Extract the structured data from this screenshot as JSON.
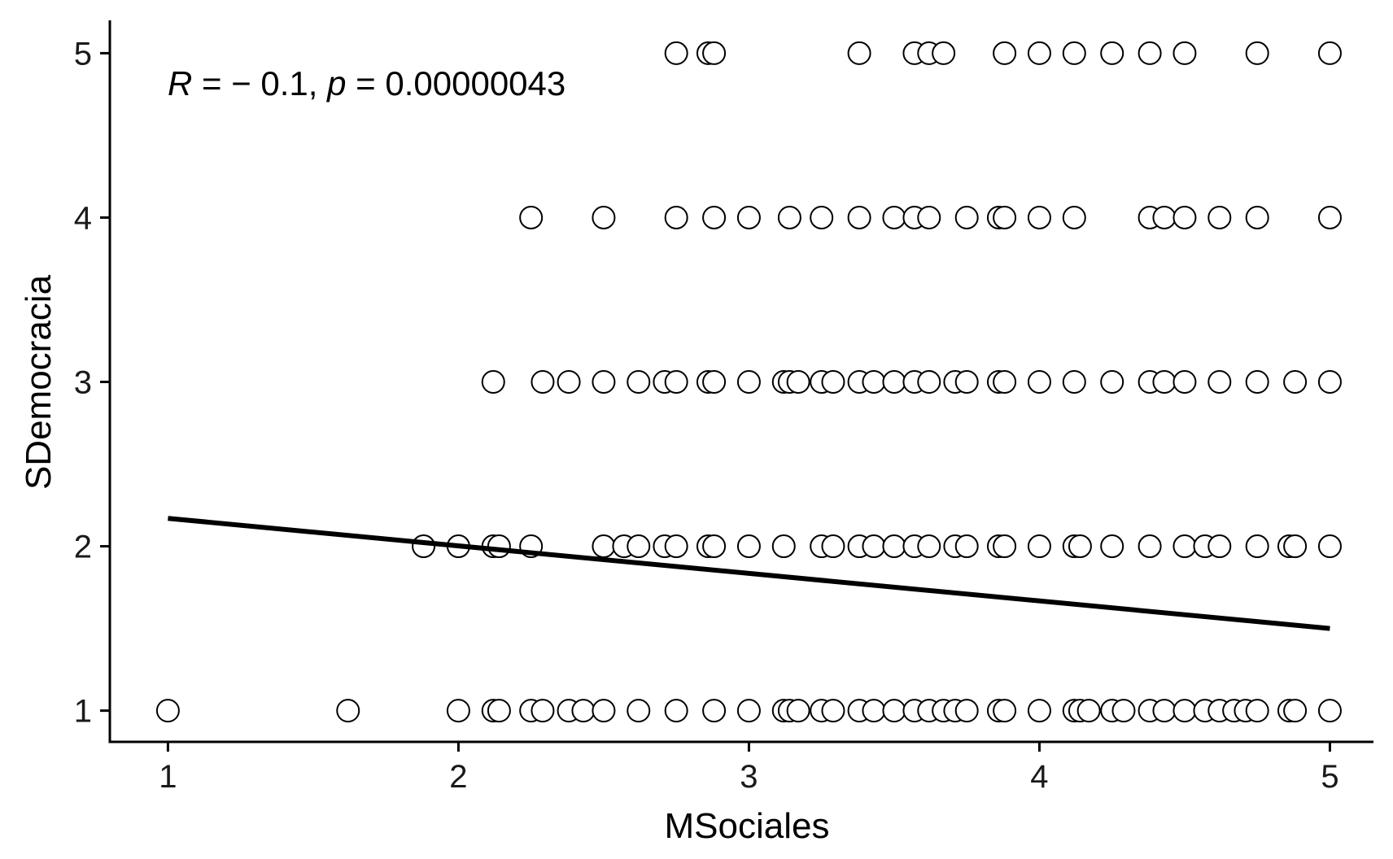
{
  "chart_data": {
    "type": "scatter",
    "xlabel": "MSociales",
    "ylabel": "SDemocracia",
    "xlim": [
      0.8,
      5.15
    ],
    "ylim": [
      0.81,
      5.2
    ],
    "x_ticks": [
      1,
      2,
      3,
      4,
      5
    ],
    "y_ticks": [
      1,
      2,
      3,
      4,
      5
    ],
    "x_tick_labels": [
      "1",
      "2",
      "3",
      "4",
      "5"
    ],
    "y_tick_labels": [
      "1",
      "2",
      "3",
      "4",
      "5"
    ],
    "grid": false,
    "legend": "none",
    "annotation": {
      "r_symbol": "R",
      "r_text": " = − 0.1, ",
      "p_symbol": "p",
      "p_text": " = 0.00000043"
    },
    "regression_line": {
      "x": [
        1,
        5
      ],
      "y": [
        2.17,
        1.5
      ],
      "color": "#000000"
    },
    "point_style": {
      "fill": "#ffffff",
      "stroke": "#000000"
    },
    "points": [
      {
        "x": 2.75,
        "y": 5
      },
      {
        "x": 2.86,
        "y": 5
      },
      {
        "x": 2.88,
        "y": 5
      },
      {
        "x": 3.38,
        "y": 5
      },
      {
        "x": 3.57,
        "y": 5
      },
      {
        "x": 3.62,
        "y": 5
      },
      {
        "x": 3.67,
        "y": 5
      },
      {
        "x": 3.88,
        "y": 5
      },
      {
        "x": 4.0,
        "y": 5
      },
      {
        "x": 4.12,
        "y": 5
      },
      {
        "x": 4.25,
        "y": 5
      },
      {
        "x": 4.38,
        "y": 5
      },
      {
        "x": 4.5,
        "y": 5
      },
      {
        "x": 4.75,
        "y": 5
      },
      {
        "x": 5.0,
        "y": 5
      },
      {
        "x": 2.25,
        "y": 4
      },
      {
        "x": 2.5,
        "y": 4
      },
      {
        "x": 2.75,
        "y": 4
      },
      {
        "x": 2.88,
        "y": 4
      },
      {
        "x": 3.0,
        "y": 4
      },
      {
        "x": 3.14,
        "y": 4
      },
      {
        "x": 3.25,
        "y": 4
      },
      {
        "x": 3.38,
        "y": 4
      },
      {
        "x": 3.5,
        "y": 4
      },
      {
        "x": 3.57,
        "y": 4
      },
      {
        "x": 3.62,
        "y": 4
      },
      {
        "x": 3.75,
        "y": 4
      },
      {
        "x": 3.86,
        "y": 4
      },
      {
        "x": 3.88,
        "y": 4
      },
      {
        "x": 4.0,
        "y": 4
      },
      {
        "x": 4.12,
        "y": 4
      },
      {
        "x": 4.38,
        "y": 4
      },
      {
        "x": 4.43,
        "y": 4
      },
      {
        "x": 4.5,
        "y": 4
      },
      {
        "x": 4.62,
        "y": 4
      },
      {
        "x": 4.75,
        "y": 4
      },
      {
        "x": 5.0,
        "y": 4
      },
      {
        "x": 2.12,
        "y": 3
      },
      {
        "x": 2.29,
        "y": 3
      },
      {
        "x": 2.38,
        "y": 3
      },
      {
        "x": 2.5,
        "y": 3
      },
      {
        "x": 2.62,
        "y": 3
      },
      {
        "x": 2.71,
        "y": 3
      },
      {
        "x": 2.75,
        "y": 3
      },
      {
        "x": 2.86,
        "y": 3
      },
      {
        "x": 2.88,
        "y": 3
      },
      {
        "x": 3.0,
        "y": 3
      },
      {
        "x": 3.12,
        "y": 3
      },
      {
        "x": 3.14,
        "y": 3
      },
      {
        "x": 3.17,
        "y": 3
      },
      {
        "x": 3.25,
        "y": 3
      },
      {
        "x": 3.29,
        "y": 3
      },
      {
        "x": 3.38,
        "y": 3
      },
      {
        "x": 3.43,
        "y": 3
      },
      {
        "x": 3.5,
        "y": 3
      },
      {
        "x": 3.57,
        "y": 3
      },
      {
        "x": 3.62,
        "y": 3
      },
      {
        "x": 3.71,
        "y": 3
      },
      {
        "x": 3.75,
        "y": 3
      },
      {
        "x": 3.86,
        "y": 3
      },
      {
        "x": 3.88,
        "y": 3
      },
      {
        "x": 4.0,
        "y": 3
      },
      {
        "x": 4.12,
        "y": 3
      },
      {
        "x": 4.25,
        "y": 3
      },
      {
        "x": 4.38,
        "y": 3
      },
      {
        "x": 4.43,
        "y": 3
      },
      {
        "x": 4.5,
        "y": 3
      },
      {
        "x": 4.62,
        "y": 3
      },
      {
        "x": 4.75,
        "y": 3
      },
      {
        "x": 4.88,
        "y": 3
      },
      {
        "x": 5.0,
        "y": 3
      },
      {
        "x": 1.88,
        "y": 2
      },
      {
        "x": 2.0,
        "y": 2
      },
      {
        "x": 2.12,
        "y": 2
      },
      {
        "x": 2.14,
        "y": 2
      },
      {
        "x": 2.25,
        "y": 2
      },
      {
        "x": 2.5,
        "y": 2
      },
      {
        "x": 2.57,
        "y": 2
      },
      {
        "x": 2.62,
        "y": 2
      },
      {
        "x": 2.71,
        "y": 2
      },
      {
        "x": 2.75,
        "y": 2
      },
      {
        "x": 2.86,
        "y": 2
      },
      {
        "x": 2.88,
        "y": 2
      },
      {
        "x": 3.0,
        "y": 2
      },
      {
        "x": 3.12,
        "y": 2
      },
      {
        "x": 3.25,
        "y": 2
      },
      {
        "x": 3.29,
        "y": 2
      },
      {
        "x": 3.38,
        "y": 2
      },
      {
        "x": 3.43,
        "y": 2
      },
      {
        "x": 3.5,
        "y": 2
      },
      {
        "x": 3.57,
        "y": 2
      },
      {
        "x": 3.62,
        "y": 2
      },
      {
        "x": 3.71,
        "y": 2
      },
      {
        "x": 3.75,
        "y": 2
      },
      {
        "x": 3.86,
        "y": 2
      },
      {
        "x": 3.88,
        "y": 2
      },
      {
        "x": 4.0,
        "y": 2
      },
      {
        "x": 4.12,
        "y": 2
      },
      {
        "x": 4.14,
        "y": 2
      },
      {
        "x": 4.25,
        "y": 2
      },
      {
        "x": 4.38,
        "y": 2
      },
      {
        "x": 4.5,
        "y": 2
      },
      {
        "x": 4.57,
        "y": 2
      },
      {
        "x": 4.62,
        "y": 2
      },
      {
        "x": 4.75,
        "y": 2
      },
      {
        "x": 4.86,
        "y": 2
      },
      {
        "x": 4.88,
        "y": 2
      },
      {
        "x": 5.0,
        "y": 2
      },
      {
        "x": 1.0,
        "y": 1
      },
      {
        "x": 1.62,
        "y": 1
      },
      {
        "x": 2.0,
        "y": 1
      },
      {
        "x": 2.12,
        "y": 1
      },
      {
        "x": 2.14,
        "y": 1
      },
      {
        "x": 2.25,
        "y": 1
      },
      {
        "x": 2.29,
        "y": 1
      },
      {
        "x": 2.38,
        "y": 1
      },
      {
        "x": 2.43,
        "y": 1
      },
      {
        "x": 2.5,
        "y": 1
      },
      {
        "x": 2.62,
        "y": 1
      },
      {
        "x": 2.75,
        "y": 1
      },
      {
        "x": 2.88,
        "y": 1
      },
      {
        "x": 3.0,
        "y": 1
      },
      {
        "x": 3.12,
        "y": 1
      },
      {
        "x": 3.14,
        "y": 1
      },
      {
        "x": 3.17,
        "y": 1
      },
      {
        "x": 3.25,
        "y": 1
      },
      {
        "x": 3.29,
        "y": 1
      },
      {
        "x": 3.38,
        "y": 1
      },
      {
        "x": 3.43,
        "y": 1
      },
      {
        "x": 3.5,
        "y": 1
      },
      {
        "x": 3.57,
        "y": 1
      },
      {
        "x": 3.62,
        "y": 1
      },
      {
        "x": 3.67,
        "y": 1
      },
      {
        "x": 3.71,
        "y": 1
      },
      {
        "x": 3.75,
        "y": 1
      },
      {
        "x": 3.86,
        "y": 1
      },
      {
        "x": 3.88,
        "y": 1
      },
      {
        "x": 4.0,
        "y": 1
      },
      {
        "x": 4.12,
        "y": 1
      },
      {
        "x": 4.14,
        "y": 1
      },
      {
        "x": 4.17,
        "y": 1
      },
      {
        "x": 4.25,
        "y": 1
      },
      {
        "x": 4.29,
        "y": 1
      },
      {
        "x": 4.38,
        "y": 1
      },
      {
        "x": 4.43,
        "y": 1
      },
      {
        "x": 4.5,
        "y": 1
      },
      {
        "x": 4.57,
        "y": 1
      },
      {
        "x": 4.62,
        "y": 1
      },
      {
        "x": 4.67,
        "y": 1
      },
      {
        "x": 4.71,
        "y": 1
      },
      {
        "x": 4.75,
        "y": 1
      },
      {
        "x": 4.86,
        "y": 1
      },
      {
        "x": 4.88,
        "y": 1
      },
      {
        "x": 5.0,
        "y": 1
      }
    ]
  }
}
